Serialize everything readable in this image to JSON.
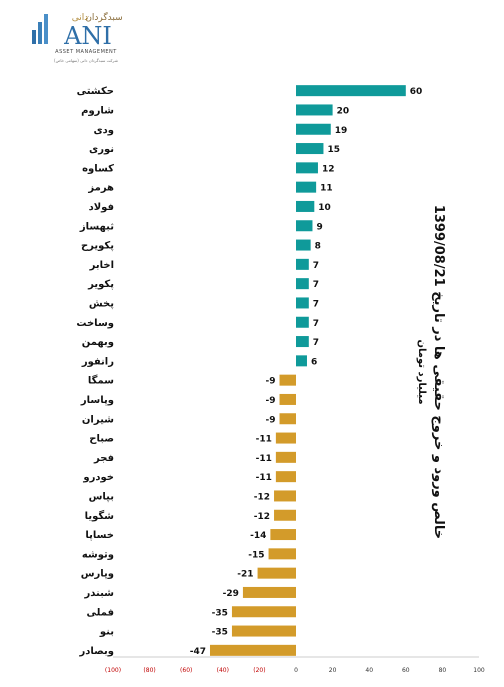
{
  "logo": {
    "brand_fa": "سبدگردان",
    "brand_fa2": "دانی",
    "brand_en": "ANI",
    "sub_en": "ASSET MANAGEMENT",
    "tagline_fa": "شرکت سبدگردان دانی (سهامی خاص)"
  },
  "colors": {
    "positive": "#0f9a9a",
    "negative": "#d39b2a",
    "negative_tick": "#c00000"
  },
  "chart_data": {
    "type": "bar",
    "orientation": "horizontal",
    "title": "خالص ورود و خروج حقیقی ها در تاریخ 1399/08/21",
    "subtitle": "میلیارد تومان",
    "categories": [
      "حکشتی",
      "شاروم",
      "ودی",
      "نوری",
      "کساوه",
      "هرمز",
      "فولاد",
      "ثبهساز",
      "پکویرح",
      "اخابر",
      "پکویر",
      "پخش",
      "وساخت",
      "وبهمن",
      "رانفور",
      "سمگا",
      "وپاسار",
      "شیران",
      "صباح",
      "فجر",
      "خودرو",
      "بپاس",
      "شگویا",
      "خساپا",
      "وتوشه",
      "وپارس",
      "شبندر",
      "فملی",
      "بنو",
      "وبصادر"
    ],
    "values": [
      60,
      20,
      19,
      15,
      12,
      11,
      10,
      9,
      8,
      7,
      7,
      7,
      7,
      7,
      6,
      -9,
      -9,
      -9,
      -11,
      -11,
      -11,
      -12,
      -12,
      -14,
      -15,
      -21,
      -29,
      -35,
      -35,
      -47
    ],
    "value_labels": [
      "60",
      "20",
      "19",
      "15",
      "12",
      "11",
      "10",
      "9",
      "8",
      "7",
      "7",
      "7",
      "7",
      "7",
      "6",
      "-9",
      "-9",
      "-9",
      "-11",
      "-11",
      "-11",
      "-12",
      "-12",
      "-14",
      "-15",
      "-21",
      "-29",
      "-35",
      "-35",
      "-47"
    ],
    "xlim": [
      -100,
      100
    ],
    "x_ticks": [
      -100,
      -80,
      -60,
      -40,
      -20,
      0,
      20,
      40,
      60,
      80,
      100
    ],
    "x_tick_labels": [
      "(100)",
      "(80)",
      "(60)",
      "(40)",
      "(20)",
      "0",
      "20",
      "40",
      "60",
      "80",
      "100"
    ],
    "grid": false,
    "legend": "none"
  }
}
